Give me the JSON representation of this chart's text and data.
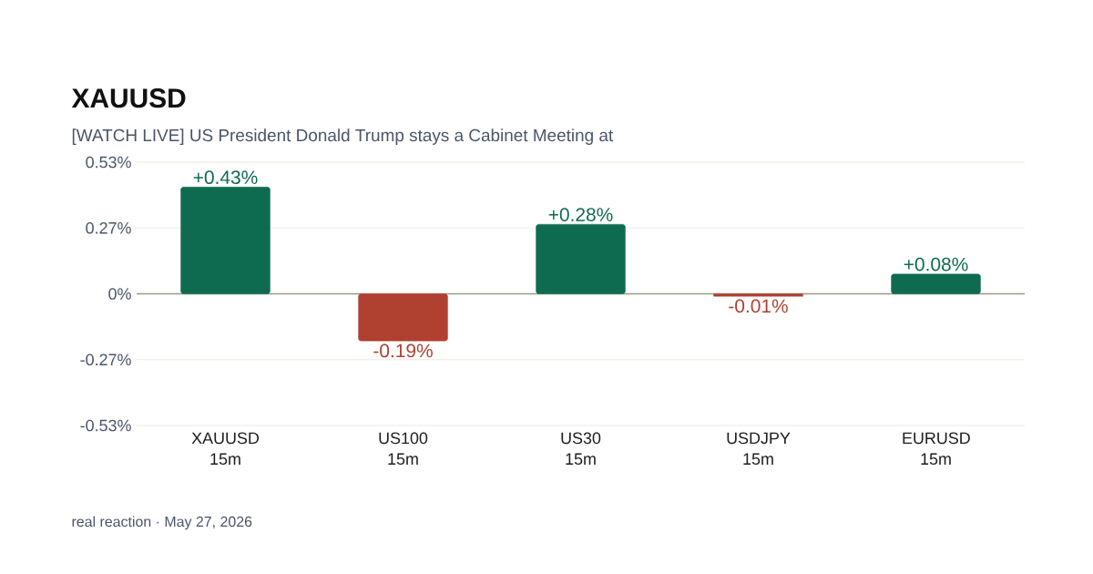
{
  "chart_data": {
    "type": "bar",
    "title": "XAUUSD",
    "subtitle": "[WATCH LIVE] US President Donald Trump stays a Cabinet Meeting at",
    "categories": [
      "XAUUSD 15m",
      "US100 15m",
      "US30 15m",
      "USDJPY 15m",
      "EURUSD 15m"
    ],
    "values": [
      0.43,
      -0.19,
      0.28,
      -0.01,
      0.08
    ],
    "colors": [
      "#0f6b50",
      "#b04030",
      "#0f6b50",
      "#b04030",
      "#0f6b50"
    ],
    "value_labels": [
      "+0.43%",
      "-0.19%",
      "+0.28%",
      "-0.01%",
      "+0.08%"
    ],
    "ylim": [
      -0.53,
      0.53
    ],
    "yticks": [
      {
        "value": 0.53,
        "label": "0.53%"
      },
      {
        "value": 0.265,
        "label": "0.27%"
      },
      {
        "value": 0,
        "label": "0%"
      },
      {
        "value": -0.265,
        "label": "-0.27%"
      },
      {
        "value": -0.53,
        "label": "-0.53%"
      }
    ],
    "grid": "y",
    "ref_lines": [
      {
        "axis": "y",
        "value": 0,
        "color": "#9a9a88"
      }
    ],
    "annotations": [
      "real reaction · May 27, 2026"
    ]
  }
}
